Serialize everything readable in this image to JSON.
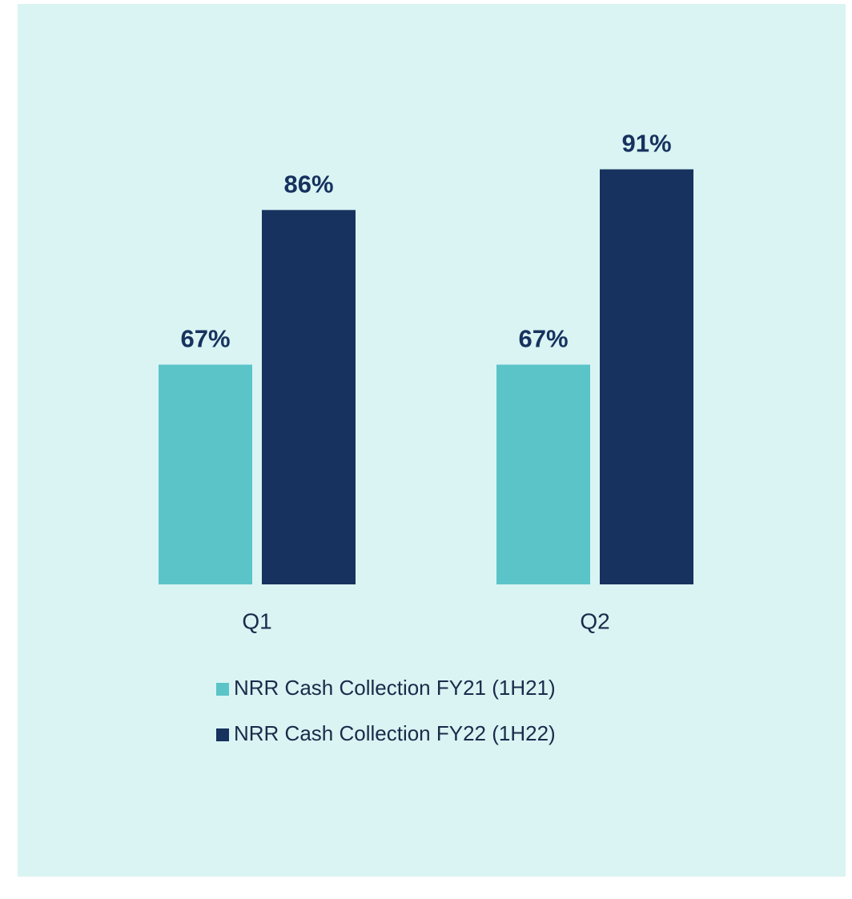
{
  "chart_data": {
    "type": "bar",
    "categories": [
      "Q1",
      "Q2"
    ],
    "series": [
      {
        "name": "NRR Cash Collection FY21 (1H21)",
        "color": "#5bc4c8",
        "values": [
          67,
          67
        ],
        "value_labels": [
          "67%",
          "67%"
        ]
      },
      {
        "name": "NRR Cash Collection FY22 (1H22)",
        "color": "#17325e",
        "values": [
          86,
          91
        ],
        "value_labels": [
          "86%",
          "91%"
        ]
      }
    ],
    "ylim": [
      40,
      100
    ]
  }
}
